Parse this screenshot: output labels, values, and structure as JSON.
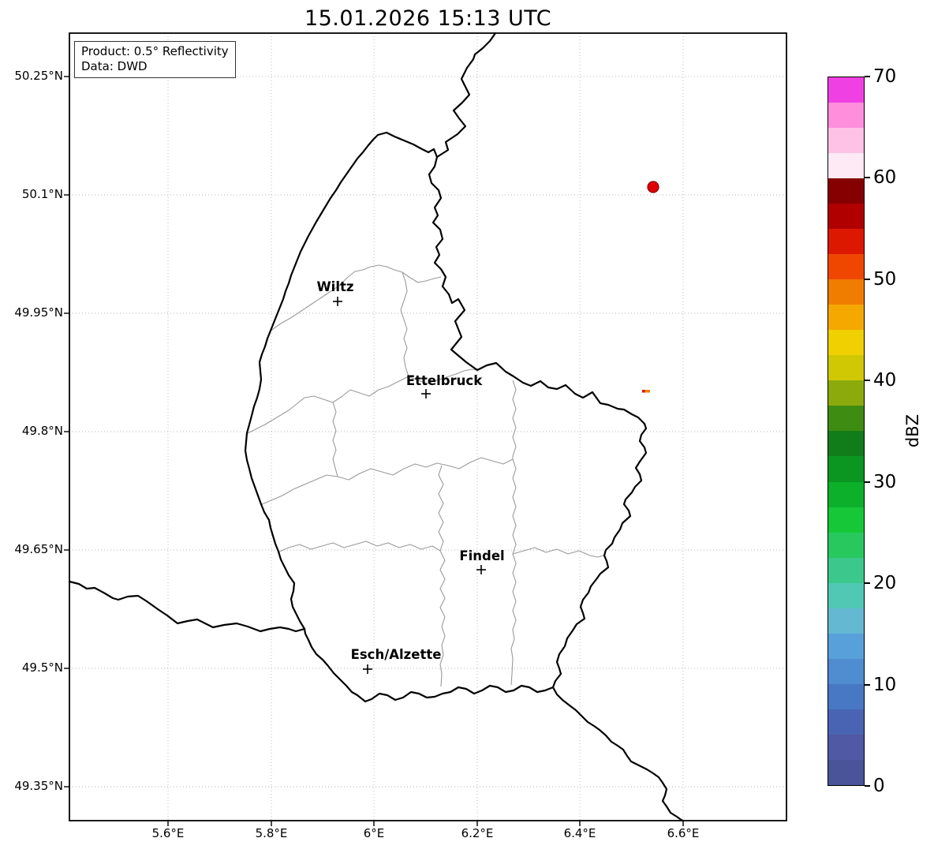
{
  "title": "15.01.2026 15:13 UTC",
  "info_box": {
    "product": "Product: 0.5° Reflectivity",
    "data_source": "Data: DWD"
  },
  "axes": {
    "y_ticks": [
      "50.25°N",
      "50.1°N",
      "49.95°N",
      "49.8°N",
      "49.65°N",
      "49.5°N",
      "49.35°N"
    ],
    "x_ticks": [
      "5.6°E",
      "5.8°E",
      "6°E",
      "6.2°E",
      "6.4°E",
      "6.6°E"
    ]
  },
  "map": {
    "cities": [
      {
        "name": "Wiltz"
      },
      {
        "name": "Ettelbruck"
      },
      {
        "name": "Findel"
      },
      {
        "name": "Esch/Alzette"
      }
    ]
  },
  "colorbar": {
    "label": "dBZ",
    "tick_labels": [
      "70",
      "60",
      "50",
      "40",
      "30",
      "20",
      "10",
      "0"
    ],
    "min": 0,
    "max": 70,
    "step": 2.5,
    "colors_bottom_to_top": [
      "#4a5499",
      "#5059a3",
      "#4a64b4",
      "#4878c3",
      "#4f8cd0",
      "#58a0da",
      "#64b8d2",
      "#50c8b4",
      "#3cc88c",
      "#28c85f",
      "#16c837",
      "#0cb02b",
      "#0a9620",
      "#117d1a",
      "#3f8c12",
      "#8caa0c",
      "#cfc803",
      "#f0d000",
      "#f5a800",
      "#f07d00",
      "#ef4700",
      "#dc1800",
      "#b00000",
      "#850000",
      "#fdeaf4",
      "#ffc2e7",
      "#ff8edd",
      "#ef41e3"
    ]
  },
  "chart_data": {
    "type": "radar-reflectivity-map",
    "timestamp_utc": "15.01.2026 15:13",
    "product": "0.5° Reflectivity",
    "source": "DWD",
    "lon_range_deg_e": [
      5.41,
      6.8
    ],
    "lat_range_deg_n": [
      49.31,
      50.31
    ],
    "grid": "dotted graticule at labeled ticks",
    "cities": [
      {
        "name": "Wiltz",
        "lat": 49.965,
        "lon": 5.93
      },
      {
        "name": "Ettelbruck",
        "lat": 49.85,
        "lon": 6.1
      },
      {
        "name": "Findel",
        "lat": 49.63,
        "lon": 6.22
      },
      {
        "name": "Esch/Alzette",
        "lat": 49.5,
        "lon": 5.98
      }
    ],
    "echoes": [
      {
        "lat": 50.11,
        "lon": 6.54,
        "dbz": 52,
        "shape": "dot"
      },
      {
        "lat": 49.85,
        "lon": 6.53,
        "dbz": 45,
        "shape": "small-dash"
      }
    ],
    "colorbar_unit": "dBZ",
    "colorbar_range": [
      0,
      70
    ]
  }
}
